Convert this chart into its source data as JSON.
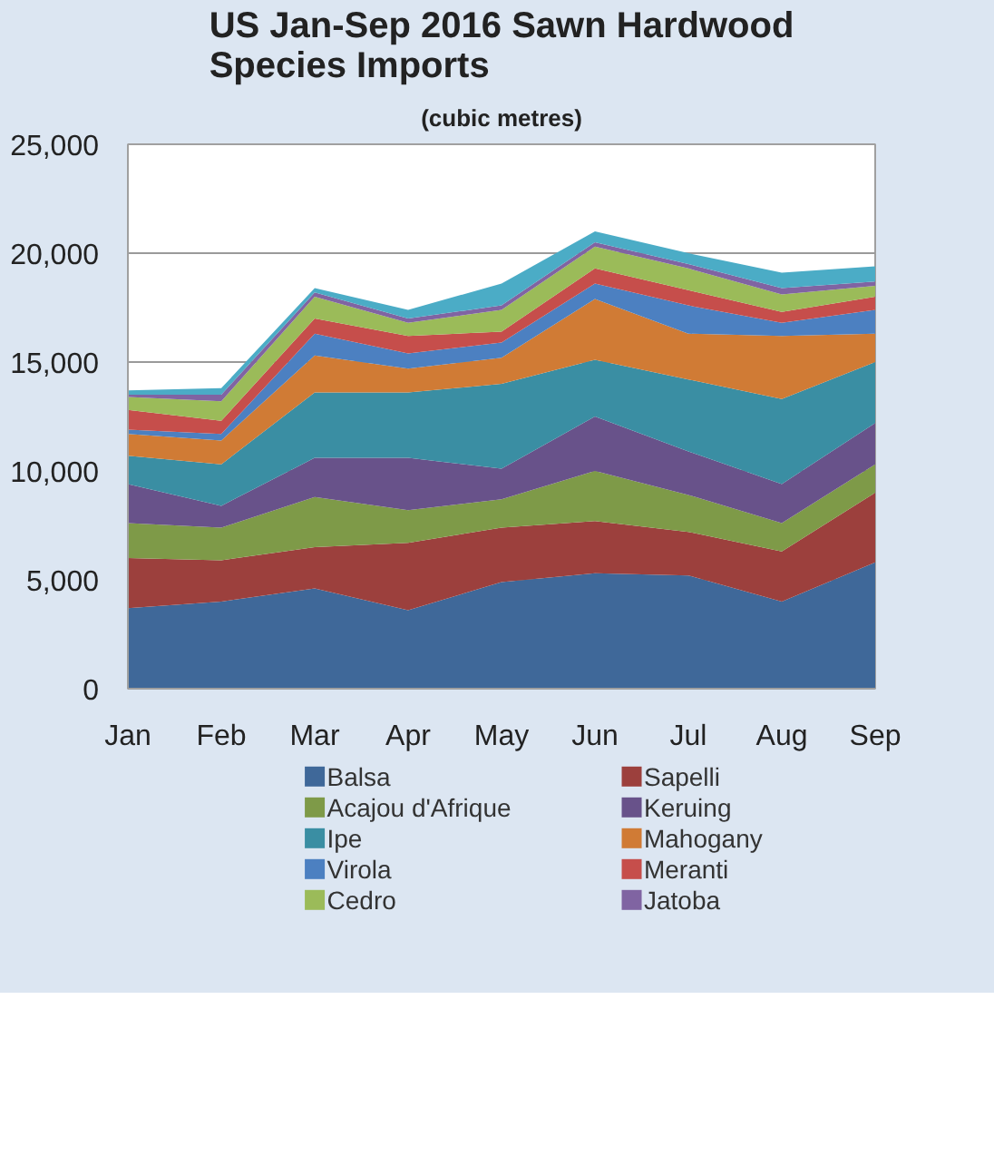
{
  "chart_data": {
    "type": "area",
    "stacked": true,
    "title": "US Jan-Sep 2016 Sawn Hardwood Species Imports",
    "subtitle": "(cubic metres)",
    "categories": [
      "Jan",
      "Feb",
      "Mar",
      "Apr",
      "May",
      "Jun",
      "Jul",
      "Aug",
      "Sep"
    ],
    "series": [
      {
        "name": "Balsa",
        "color": "#3f6899",
        "values": [
          3700,
          4000,
          4600,
          3600,
          4900,
          5300,
          5200,
          4000,
          5800
        ]
      },
      {
        "name": "Sapelli",
        "color": "#9c403d",
        "values": [
          2300,
          1900,
          1900,
          3100,
          2500,
          2400,
          2000,
          2300,
          3200
        ]
      },
      {
        "name": "Acajou d'Afrique",
        "color": "#7e9a48",
        "values": [
          1600,
          1500,
          2300,
          1500,
          1300,
          2300,
          1700,
          1300,
          1300
        ]
      },
      {
        "name": "Keruing",
        "color": "#68528a",
        "values": [
          1800,
          1000,
          1800,
          2400,
          1400,
          2500,
          2000,
          1800,
          1900
        ]
      },
      {
        "name": "Ipe",
        "color": "#3a8ea3",
        "values": [
          1300,
          1900,
          3000,
          3000,
          3900,
          2600,
          3300,
          3900,
          2800
        ]
      },
      {
        "name": "Mahogany",
        "color": "#d07b35",
        "values": [
          1000,
          1100,
          1700,
          1100,
          1200,
          2800,
          2100,
          2900,
          1300
        ]
      },
      {
        "name": "Virola",
        "color": "#4c80c1",
        "values": [
          200,
          300,
          1000,
          700,
          700,
          700,
          1300,
          600,
          1100
        ]
      },
      {
        "name": "Meranti",
        "color": "#c64e4b",
        "values": [
          900,
          600,
          700,
          800,
          500,
          700,
          700,
          500,
          600
        ]
      },
      {
        "name": "Cedro",
        "color": "#9bbb59",
        "values": [
          600,
          900,
          1000,
          600,
          1000,
          1000,
          1000,
          800,
          500
        ]
      },
      {
        "name": "Jatoba",
        "color": "#8064a2",
        "values": [
          100,
          300,
          200,
          200,
          200,
          200,
          200,
          300,
          200
        ]
      },
      {
        "color": "#4bacc6",
        "values": [
          200,
          300,
          200,
          400,
          1000,
          500,
          500,
          700,
          700
        ]
      }
    ],
    "ylim": [
      0,
      25000
    ],
    "yticks": [
      0,
      {
        "value": 5000,
        "label": "5,000"
      },
      {
        "value": 10000,
        "label": "10,000"
      },
      {
        "value": 15000,
        "label": "15,000"
      },
      {
        "value": 20000,
        "label": "20,000"
      },
      {
        "value": 25000,
        "label": "25,000"
      }
    ],
    "grid": "y",
    "legend": "bottom"
  }
}
